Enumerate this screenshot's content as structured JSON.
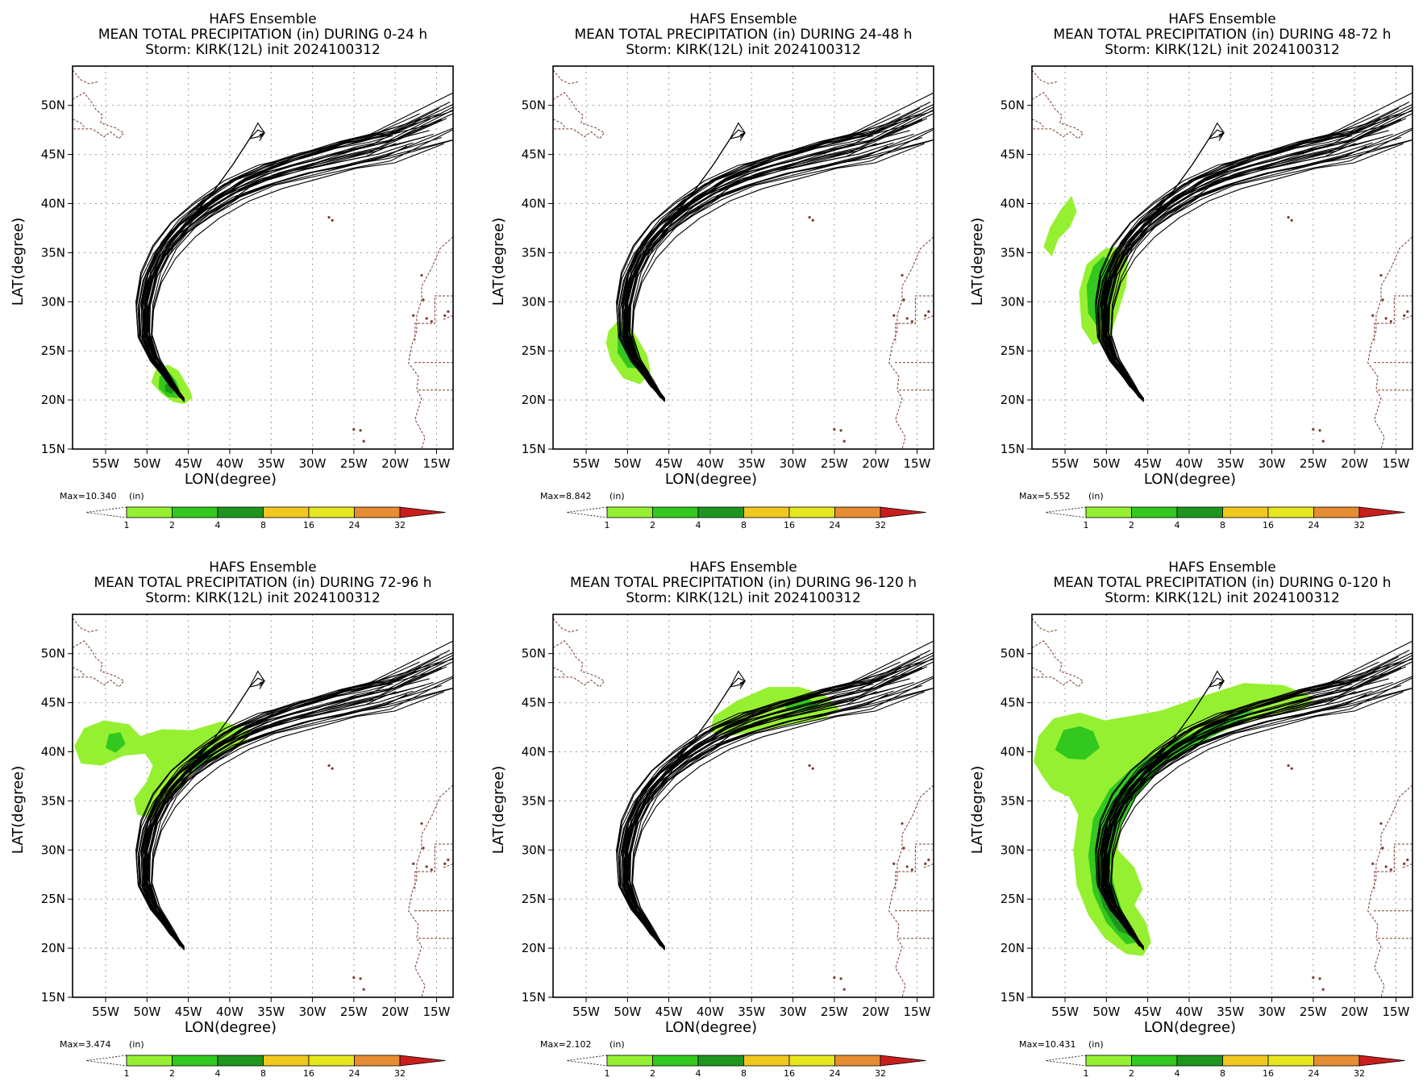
{
  "figure": {
    "background": "#ffffff"
  },
  "legend_colors": [
    {
      "from": 1,
      "to": 2,
      "color": "#96f032"
    },
    {
      "from": 2,
      "to": 4,
      "color": "#32c81e"
    },
    {
      "from": 4,
      "to": 8,
      "color": "#1e961e"
    },
    {
      "from": 8,
      "to": 16,
      "color": "#f0c81e"
    },
    {
      "from": 16,
      "to": 24,
      "color": "#e6e61e"
    },
    {
      "from": 24,
      "to": 32,
      "color": "#e68c32"
    },
    {
      "from": 32,
      "to": null,
      "color": "#c81e1e"
    }
  ],
  "legend_ticks": [
    "1",
    "2",
    "4",
    "8",
    "16",
    "24",
    "32"
  ],
  "legend_unit": "(in)",
  "chart_data": [
    {
      "type": "line",
      "title": "HAFS Ensemble",
      "subtitle": "MEAN TOTAL PRECIPITATION (in) DURING  0-24 h",
      "storm": "Storm: KIRK(12L) init 2024100312",
      "xlabel": "LON(degree)",
      "ylabel": "LAT(degree)",
      "xlim": [
        -59,
        -13
      ],
      "ylim": [
        15,
        54
      ],
      "xticks": [
        "55W",
        "50W",
        "45W",
        "40W",
        "35W",
        "30W",
        "25W",
        "20W",
        "15W"
      ],
      "yticks": [
        "15N",
        "20N",
        "25N",
        "30N",
        "35N",
        "40N",
        "45N",
        "50N"
      ],
      "grid": true,
      "max_label": "Max=10.340",
      "precip_regions": [
        {
          "level": 1,
          "points": [
            [
              -49,
              23
            ],
            [
              -47.5,
              23.6
            ],
            [
              -46.2,
              23
            ],
            [
              -45.5,
              22
            ],
            [
              -44.8,
              21
            ],
            [
              -44.5,
              20.2
            ],
            [
              -45.5,
              19.6
            ],
            [
              -46.8,
              19.8
            ],
            [
              -48.2,
              20.6
            ],
            [
              -49.5,
              21.8
            ]
          ]
        },
        {
          "level": 2,
          "points": [
            [
              -48.5,
              22.4
            ],
            [
              -47.3,
              22.8
            ],
            [
              -46.5,
              22
            ],
            [
              -46,
              21
            ],
            [
              -46.3,
              20.2
            ],
            [
              -47.5,
              20.3
            ],
            [
              -48.6,
              21.2
            ]
          ]
        },
        {
          "level": 4,
          "points": [
            [
              -47.8,
              21.6
            ],
            [
              -46.9,
              21.8
            ],
            [
              -46.5,
              21.1
            ],
            [
              -47,
              20.6
            ],
            [
              -47.8,
              20.9
            ]
          ]
        }
      ]
    },
    {
      "type": "line",
      "title": "HAFS Ensemble",
      "subtitle": "MEAN TOTAL PRECIPITATION (in) DURING 24-48 h",
      "storm": "Storm: KIRK(12L) init 2024100312",
      "xlabel": "LON(degree)",
      "ylabel": "LAT(degree)",
      "xlim": [
        -59,
        -13
      ],
      "ylim": [
        15,
        54
      ],
      "xticks": [
        "55W",
        "50W",
        "45W",
        "40W",
        "35W",
        "30W",
        "25W",
        "20W",
        "15W"
      ],
      "yticks": [
        "15N",
        "20N",
        "25N",
        "30N",
        "35N",
        "40N",
        "45N",
        "50N"
      ],
      "grid": true,
      "max_label": "Max=8.842",
      "precip_regions": [
        {
          "level": 1,
          "points": [
            [
              -52.3,
              27
            ],
            [
              -51.2,
              28
            ],
            [
              -50,
              27.8
            ],
            [
              -48.8,
              26.3
            ],
            [
              -47.6,
              24.5
            ],
            [
              -47.2,
              22.8
            ],
            [
              -48.5,
              21.6
            ],
            [
              -50.5,
              22.2
            ],
            [
              -52,
              24
            ],
            [
              -52.6,
              25.8
            ]
          ]
        },
        {
          "level": 2,
          "points": [
            [
              -51.2,
              26.8
            ],
            [
              -50.2,
              27.2
            ],
            [
              -49.2,
              26
            ],
            [
              -48.5,
              24.5
            ],
            [
              -48.6,
              23.2
            ],
            [
              -50,
              23.3
            ],
            [
              -51.2,
              24.8
            ]
          ]
        }
      ]
    },
    {
      "type": "line",
      "title": "HAFS Ensemble",
      "subtitle": "MEAN TOTAL PRECIPITATION (in) DURING 48-72 h",
      "storm": "Storm: KIRK(12L) init 2024100312",
      "xlabel": "LON(degree)",
      "ylabel": "LAT(degree)",
      "xlim": [
        -59,
        -13
      ],
      "ylim": [
        15,
        54
      ],
      "xticks": [
        "55W",
        "50W",
        "45W",
        "40W",
        "35W",
        "30W",
        "25W",
        "20W",
        "15W"
      ],
      "yticks": [
        "15N",
        "20N",
        "25N",
        "30N",
        "35N",
        "40N",
        "45N",
        "50N"
      ],
      "grid": true,
      "max_label": "Max=5.552",
      "precip_regions": [
        {
          "level": 1,
          "points": [
            [
              -50.2,
              35.4
            ],
            [
              -48.6,
              35.6
            ],
            [
              -47.4,
              34.4
            ],
            [
              -47.6,
              31.6
            ],
            [
              -48.8,
              28.4
            ],
            [
              -49.6,
              26.3
            ],
            [
              -51.6,
              25.6
            ],
            [
              -53,
              27.4
            ],
            [
              -53.3,
              31
            ],
            [
              -52.4,
              33.8
            ]
          ]
        },
        {
          "level": 1,
          "points": [
            [
              -55.5,
              39.4
            ],
            [
              -54.2,
              40.8
            ],
            [
              -53.6,
              39.2
            ],
            [
              -54.4,
              37.6
            ],
            [
              -55.8,
              36.4
            ],
            [
              -56.6,
              34.6
            ],
            [
              -57.6,
              35.6
            ],
            [
              -56.8,
              37.6
            ]
          ]
        },
        {
          "level": 2,
          "points": [
            [
              -50.4,
              34.6
            ],
            [
              -49.4,
              34.2
            ],
            [
              -49.2,
              31
            ],
            [
              -50,
              28.8
            ],
            [
              -51.2,
              27.6
            ],
            [
              -52.2,
              28.8
            ],
            [
              -52.4,
              31.6
            ],
            [
              -51.6,
              33.6
            ]
          ]
        }
      ]
    },
    {
      "type": "line",
      "title": "HAFS Ensemble",
      "subtitle": "MEAN TOTAL PRECIPITATION (in) DURING 72-96 h",
      "storm": "Storm: KIRK(12L) init 2024100312",
      "xlabel": "LON(degree)",
      "ylabel": "LAT(degree)",
      "xlim": [
        -59,
        -13
      ],
      "ylim": [
        15,
        54
      ],
      "xticks": [
        "55W",
        "50W",
        "45W",
        "40W",
        "35W",
        "30W",
        "25W",
        "20W",
        "15W"
      ],
      "yticks": [
        "15N",
        "20N",
        "25N",
        "30N",
        "35N",
        "40N",
        "45N",
        "50N"
      ],
      "grid": true,
      "max_label": "Max=3.474",
      "precip_regions": [
        {
          "level": 1,
          "points": [
            [
              -58.8,
              40.6
            ],
            [
              -57.6,
              42.4
            ],
            [
              -55.2,
              43.2
            ],
            [
              -52.2,
              42.8
            ],
            [
              -50.8,
              41.6
            ],
            [
              -48.2,
              42.3
            ],
            [
              -44.5,
              42.2
            ],
            [
              -41,
              43.1
            ],
            [
              -37.4,
              42.2
            ],
            [
              -38.6,
              40.6
            ],
            [
              -42.5,
              39.3
            ],
            [
              -45.6,
              37
            ],
            [
              -47.6,
              34.8
            ],
            [
              -49.3,
              33.2
            ],
            [
              -51.2,
              33.6
            ],
            [
              -51.6,
              35.2
            ],
            [
              -50,
              37
            ],
            [
              -49.3,
              38.6
            ],
            [
              -50.2,
              39.8
            ],
            [
              -52.8,
              39.6
            ],
            [
              -55.5,
              38.6
            ],
            [
              -58,
              38.8
            ]
          ]
        },
        {
          "level": 2,
          "points": [
            [
              -54.6,
              41.8
            ],
            [
              -53.2,
              42
            ],
            [
              -52.6,
              40.8
            ],
            [
              -53.8,
              39.9
            ],
            [
              -55,
              40.4
            ]
          ]
        },
        {
          "level": 2,
          "points": [
            [
              -44.6,
              39.4
            ],
            [
              -43,
              40.2
            ],
            [
              -41.4,
              40.7
            ],
            [
              -42,
              39.4
            ],
            [
              -44.2,
              38
            ]
          ]
        }
      ]
    },
    {
      "type": "line",
      "title": "HAFS Ensemble",
      "subtitle": "MEAN TOTAL PRECIPITATION (in) DURING 96-120 h",
      "storm": "Storm: KIRK(12L) init 2024100312",
      "xlabel": "LON(degree)",
      "ylabel": "LAT(degree)",
      "xlim": [
        -59,
        -13
      ],
      "ylim": [
        15,
        54
      ],
      "xticks": [
        "55W",
        "50W",
        "45W",
        "40W",
        "35W",
        "30W",
        "25W",
        "20W",
        "15W"
      ],
      "yticks": [
        "15N",
        "20N",
        "25N",
        "30N",
        "35N",
        "40N",
        "45N",
        "50N"
      ],
      "grid": true,
      "max_label": "Max=2.102",
      "precip_regions": [
        {
          "level": 1,
          "points": [
            [
              -39.6,
              43.6
            ],
            [
              -36.8,
              45.2
            ],
            [
              -33,
              46.6
            ],
            [
              -29.2,
              46.6
            ],
            [
              -26.2,
              45.8
            ],
            [
              -24.4,
              44.4
            ],
            [
              -26.2,
              43.4
            ],
            [
              -30,
              42.8
            ],
            [
              -34,
              42.2
            ],
            [
              -37.6,
              41.6
            ],
            [
              -40,
              42
            ]
          ]
        },
        {
          "level": 2,
          "points": [
            [
              -31,
              45.2
            ],
            [
              -28.6,
              45.6
            ],
            [
              -26.8,
              44.8
            ],
            [
              -28.8,
              44
            ],
            [
              -30.8,
              44.3
            ]
          ]
        }
      ]
    },
    {
      "type": "line",
      "title": "HAFS Ensemble",
      "subtitle": "MEAN TOTAL PRECIPITATION (in) DURING 0-120 h",
      "storm": "Storm: KIRK(12L) init 2024100312",
      "xlabel": "LON(degree)",
      "ylabel": "LAT(degree)",
      "xlim": [
        -59,
        -13
      ],
      "ylim": [
        15,
        54
      ],
      "xticks": [
        "55W",
        "50W",
        "45W",
        "40W",
        "35W",
        "30W",
        "25W",
        "20W",
        "15W"
      ],
      "yticks": [
        "15N",
        "20N",
        "25N",
        "30N",
        "35N",
        "40N",
        "45N",
        "50N"
      ],
      "grid": true,
      "max_label": "Max=10.431",
      "precip_regions": [
        {
          "level": 1,
          "points": [
            [
              -58.8,
              39
            ],
            [
              -58.2,
              41.6
            ],
            [
              -56.4,
              43.4
            ],
            [
              -53.2,
              44
            ],
            [
              -50.2,
              43.2
            ],
            [
              -47.4,
              43.6
            ],
            [
              -43.4,
              44.2
            ],
            [
              -38.6,
              45.6
            ],
            [
              -33.4,
              47
            ],
            [
              -28.6,
              46.8
            ],
            [
              -24.8,
              45.5
            ],
            [
              -26,
              44.4
            ],
            [
              -30,
              43.8
            ],
            [
              -35,
              42.4
            ],
            [
              -40,
              40.5
            ],
            [
              -44,
              38
            ],
            [
              -46.5,
              35.4
            ],
            [
              -48.4,
              32
            ],
            [
              -48.6,
              30
            ],
            [
              -46.6,
              28.2
            ],
            [
              -45.6,
              26
            ],
            [
              -46.6,
              24.4
            ],
            [
              -45.2,
              22.6
            ],
            [
              -44.6,
              20.6
            ],
            [
              -45.6,
              19.2
            ],
            [
              -47.6,
              19.4
            ],
            [
              -50.2,
              21
            ],
            [
              -52.2,
              23.4
            ],
            [
              -53.6,
              26.4
            ],
            [
              -54,
              30
            ],
            [
              -53.4,
              33.6
            ],
            [
              -54.5,
              35.4
            ],
            [
              -56.6,
              36.2
            ],
            [
              -57.8,
              37.6
            ]
          ]
        },
        {
          "level": 2,
          "points": [
            [
              -56.2,
              40.2
            ],
            [
              -55.2,
              42.2
            ],
            [
              -53.2,
              42.6
            ],
            [
              -51.6,
              42.1
            ],
            [
              -50.8,
              40.4
            ],
            [
              -52.6,
              39.2
            ],
            [
              -54.6,
              39.3
            ]
          ]
        },
        {
          "level": 2,
          "points": [
            [
              -49.6,
              36.2
            ],
            [
              -46.6,
              38.6
            ],
            [
              -42.6,
              40.6
            ],
            [
              -38,
              42.6
            ],
            [
              -34.2,
              44
            ],
            [
              -32,
              44.2
            ],
            [
              -34.8,
              42.6
            ],
            [
              -39.4,
              40.6
            ],
            [
              -43.4,
              38.4
            ],
            [
              -46.6,
              35.2
            ],
            [
              -48.8,
              31.6
            ],
            [
              -49.6,
              28.2
            ],
            [
              -48.8,
              25.6
            ],
            [
              -47.6,
              22.6
            ],
            [
              -46.2,
              20.6
            ],
            [
              -47.6,
              20.4
            ],
            [
              -50,
              22.6
            ],
            [
              -51.6,
              25.6
            ],
            [
              -52.2,
              29.4
            ],
            [
              -51.6,
              33.2
            ]
          ]
        },
        {
          "level": 4,
          "points": [
            [
              -50.6,
              30
            ],
            [
              -50,
              27.4
            ],
            [
              -49.2,
              25
            ],
            [
              -48,
              22.6
            ],
            [
              -47,
              21.2
            ],
            [
              -48.6,
              21.8
            ],
            [
              -50.4,
              24.2
            ],
            [
              -51.4,
              27.2
            ]
          ]
        },
        {
          "level": 8,
          "points": [
            [
              -49.4,
              25.4
            ],
            [
              -48.6,
              23.6
            ],
            [
              -47.6,
              22.2
            ],
            [
              -48.6,
              22.8
            ],
            [
              -49.8,
              24.8
            ]
          ]
        }
      ]
    }
  ]
}
